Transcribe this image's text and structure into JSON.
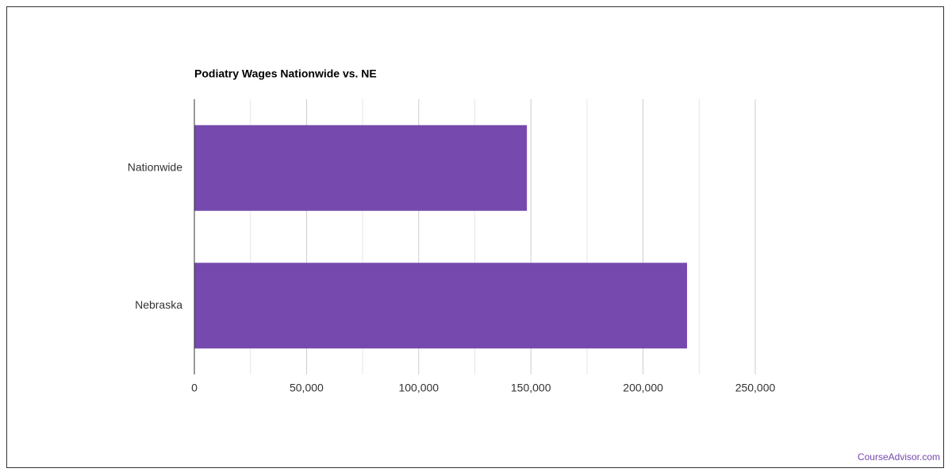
{
  "chart_data": {
    "type": "hbar",
    "title": "Podiatry Wages Nationwide vs. NE",
    "categories": [
      "Nationwide",
      "Nebraska"
    ],
    "values": [
      148220,
      219600
    ],
    "color": "#7549ae",
    "xlim": [
      0,
      250000
    ],
    "xticks": [
      0,
      {
        "value": 50000,
        "label": "50,000"
      },
      {
        "value": 100000,
        "label": "100,000"
      },
      {
        "value": 150000,
        "label": "150,000"
      },
      {
        "value": 200000,
        "label": "200,000"
      },
      {
        "value": 250000,
        "label": "250,000"
      }
    ],
    "xminorticks": [
      25000,
      75000,
      125000,
      175000,
      225000
    ],
    "grid": true
  },
  "footer": {
    "source": "CourseAdvisor.com"
  }
}
